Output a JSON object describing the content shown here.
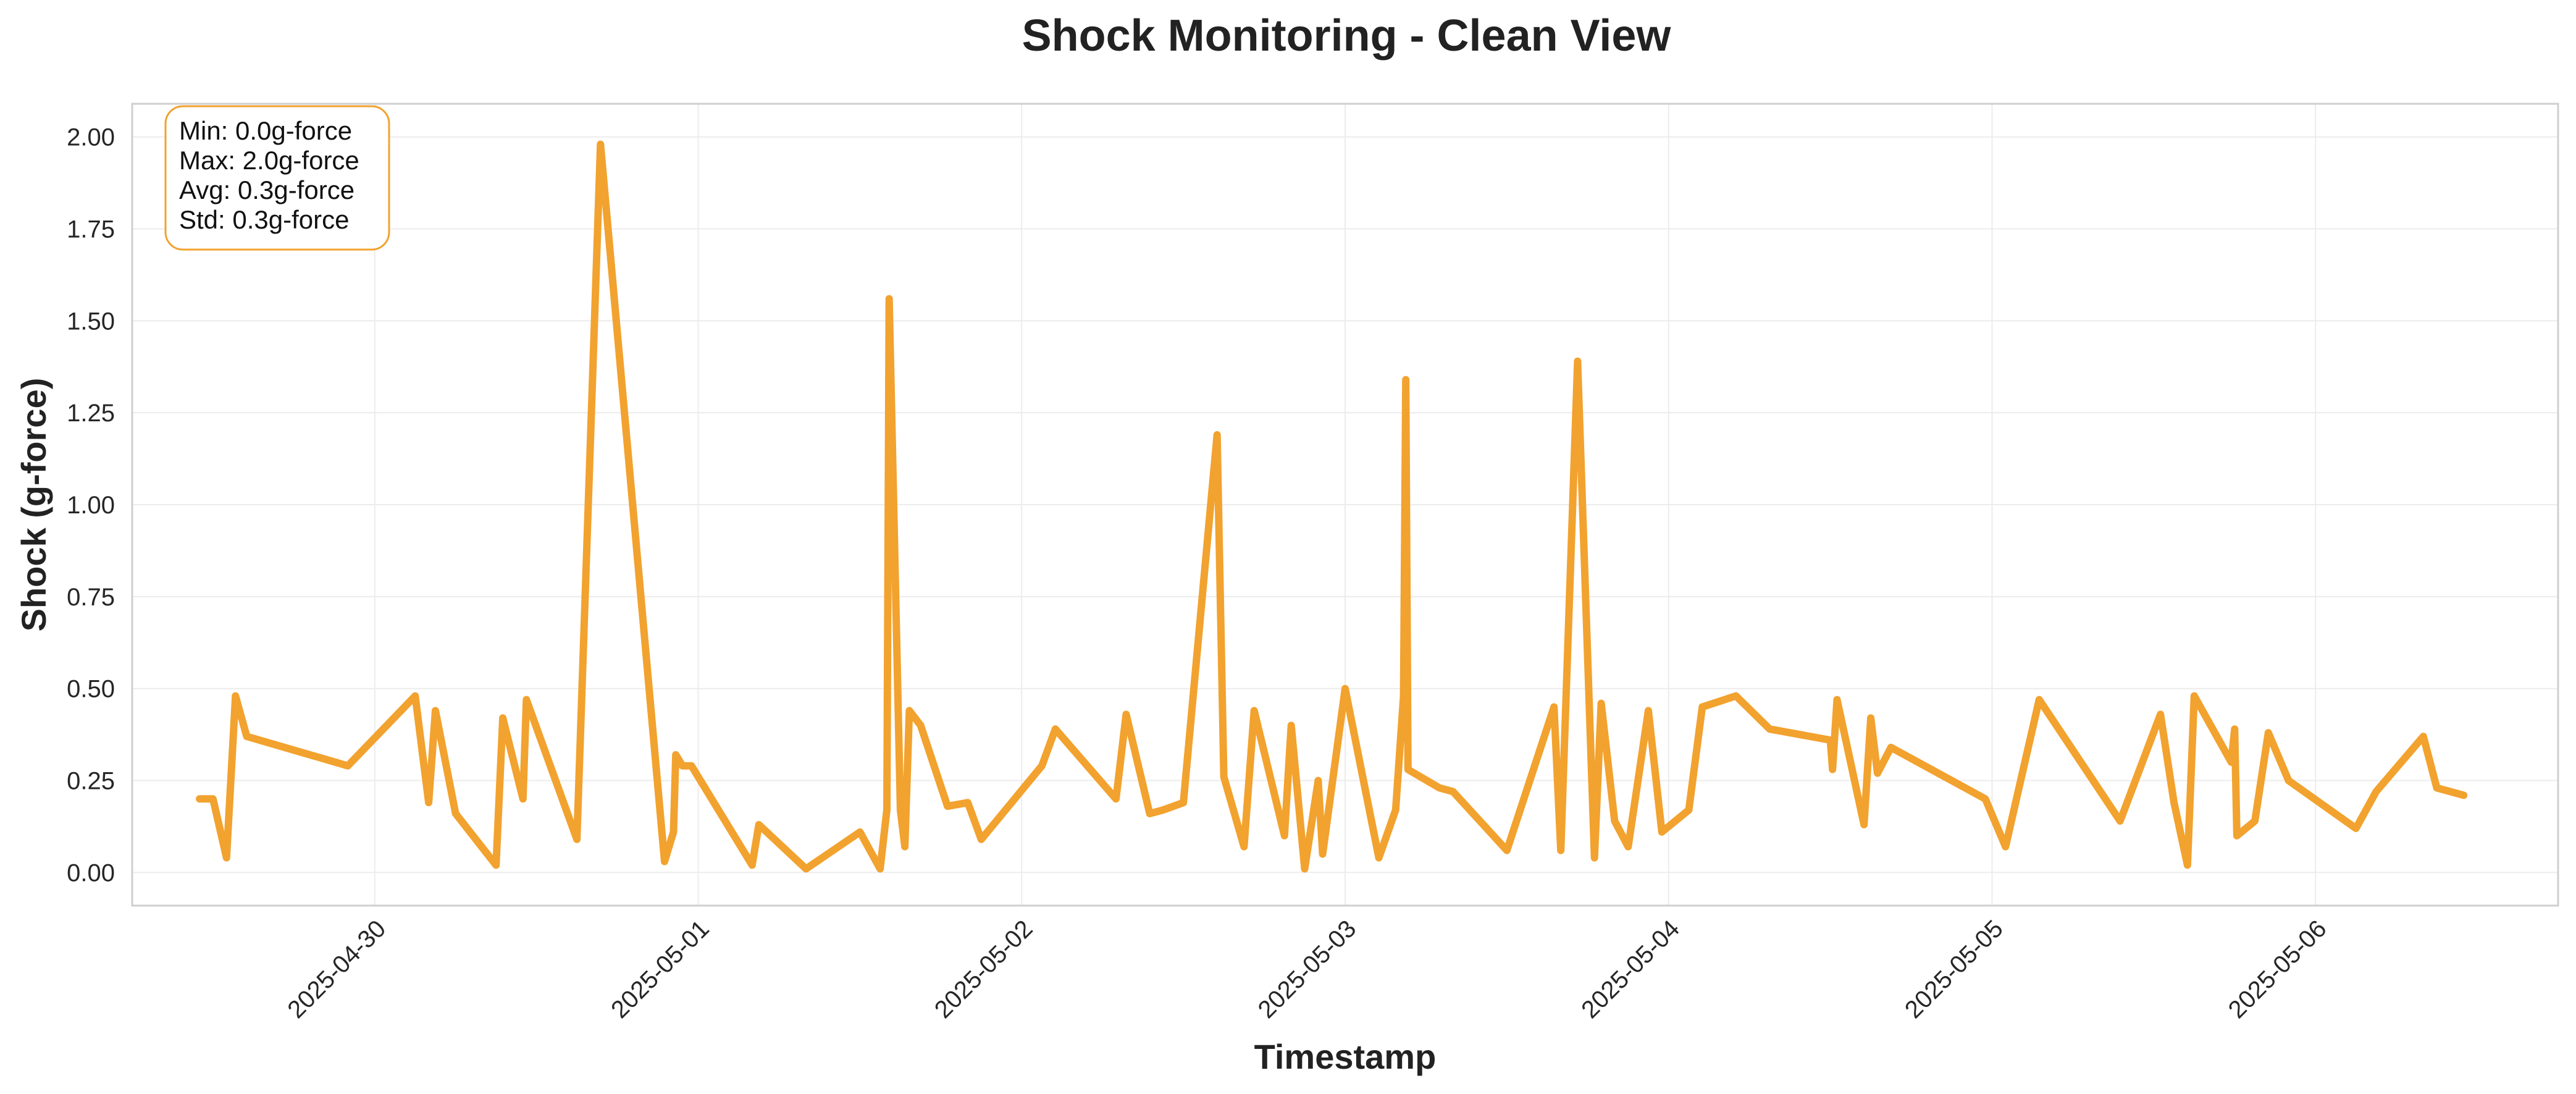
{
  "chart_data": {
    "type": "line",
    "title": "Shock Monitoring - Clean View",
    "xlabel": "Timestamp",
    "ylabel": "Shock (g-force)",
    "x_axis_type": "datetime",
    "xlim": [
      "2025-04-29T06:00",
      "2025-05-06T18:00"
    ],
    "ylim": [
      -0.09,
      2.09
    ],
    "grid": true,
    "line_color": "#F2A22E",
    "y_ticks": [
      0.0,
      0.25,
      0.5,
      0.75,
      1.0,
      1.25,
      1.5,
      1.75,
      2.0
    ],
    "y_tick_labels": [
      "0.00",
      "0.25",
      "0.50",
      "0.75",
      "1.00",
      "1.25",
      "1.50",
      "1.75",
      "2.00"
    ],
    "x_ticks": [
      "2025-04-30T00:00",
      "2025-05-01T00:00",
      "2025-05-02T00:00",
      "2025-05-03T00:00",
      "2025-05-04T00:00",
      "2025-05-05T00:00",
      "2025-05-06T00:00"
    ],
    "x_tick_labels": [
      "2025-04-30",
      "2025-05-01",
      "2025-05-02",
      "2025-05-03",
      "2025-05-04",
      "2025-05-05",
      "2025-05-06"
    ],
    "stats_box": {
      "lines": [
        "Min: 0.0g-force",
        "Max: 2.0g-force",
        "Avg: 0.3g-force",
        "Std: 0.3g-force"
      ],
      "position": "top-left",
      "border_color": "#F2A22E"
    },
    "series": [
      {
        "points": [
          [
            "2025-04-29T11:00",
            0.2
          ],
          [
            "2025-04-29T12:00",
            0.2
          ],
          [
            "2025-04-29T13:00",
            0.04
          ],
          [
            "2025-04-29T13:40",
            0.48
          ],
          [
            "2025-04-29T14:30",
            0.37
          ],
          [
            "2025-04-29T22:00",
            0.29
          ],
          [
            "2025-04-30T03:00",
            0.48
          ],
          [
            "2025-04-30T04:00",
            0.19
          ],
          [
            "2025-04-30T04:30",
            0.44
          ],
          [
            "2025-04-30T06:00",
            0.16
          ],
          [
            "2025-04-30T09:00",
            0.02
          ],
          [
            "2025-04-30T09:30",
            0.42
          ],
          [
            "2025-04-30T11:00",
            0.2
          ],
          [
            "2025-04-30T11:15",
            0.47
          ],
          [
            "2025-04-30T15:00",
            0.09
          ],
          [
            "2025-04-30T16:45",
            1.98
          ],
          [
            "2025-04-30T21:30",
            0.03
          ],
          [
            "2025-04-30T22:10",
            0.11
          ],
          [
            "2025-04-30T22:20",
            0.32
          ],
          [
            "2025-04-30T22:50",
            0.29
          ],
          [
            "2025-04-30T23:30",
            0.29
          ],
          [
            "2025-05-01T04:00",
            0.02
          ],
          [
            "2025-05-01T04:30",
            0.13
          ],
          [
            "2025-05-01T08:00",
            0.01
          ],
          [
            "2025-05-01T12:00",
            0.11
          ],
          [
            "2025-05-01T13:30",
            0.01
          ],
          [
            "2025-05-01T14:00",
            0.17
          ],
          [
            "2025-05-01T14:10",
            1.56
          ],
          [
            "2025-05-01T15:00",
            0.17
          ],
          [
            "2025-05-01T15:20",
            0.07
          ],
          [
            "2025-05-01T15:40",
            0.44
          ],
          [
            "2025-05-01T16:30",
            0.4
          ],
          [
            "2025-05-01T18:30",
            0.18
          ],
          [
            "2025-05-01T20:00",
            0.19
          ],
          [
            "2025-05-01T21:00",
            0.09
          ],
          [
            "2025-05-02T01:30",
            0.29
          ],
          [
            "2025-05-02T02:30",
            0.39
          ],
          [
            "2025-05-02T07:00",
            0.2
          ],
          [
            "2025-05-02T07:45",
            0.43
          ],
          [
            "2025-05-02T09:30",
            0.16
          ],
          [
            "2025-05-02T10:30",
            0.17
          ],
          [
            "2025-05-02T12:00",
            0.19
          ],
          [
            "2025-05-02T14:30",
            1.19
          ],
          [
            "2025-05-02T15:00",
            0.26
          ],
          [
            "2025-05-02T16:30",
            0.07
          ],
          [
            "2025-05-02T17:15",
            0.44
          ],
          [
            "2025-05-02T19:30",
            0.1
          ],
          [
            "2025-05-02T20:00",
            0.4
          ],
          [
            "2025-05-02T21:00",
            0.01
          ],
          [
            "2025-05-02T22:00",
            0.25
          ],
          [
            "2025-05-02T22:20",
            0.05
          ],
          [
            "2025-05-03T00:00",
            0.5
          ],
          [
            "2025-05-03T02:30",
            0.04
          ],
          [
            "2025-05-03T03:45",
            0.17
          ],
          [
            "2025-05-03T04:20",
            0.48
          ],
          [
            "2025-05-03T04:30",
            1.34
          ],
          [
            "2025-05-03T04:40",
            0.28
          ],
          [
            "2025-05-03T07:00",
            0.23
          ],
          [
            "2025-05-03T08:00",
            0.22
          ],
          [
            "2025-05-03T12:00",
            0.06
          ],
          [
            "2025-05-03T15:30",
            0.45
          ],
          [
            "2025-05-03T16:00",
            0.06
          ],
          [
            "2025-05-03T17:15",
            1.39
          ],
          [
            "2025-05-03T18:30",
            0.04
          ],
          [
            "2025-05-03T19:00",
            0.46
          ],
          [
            "2025-05-03T20:00",
            0.14
          ],
          [
            "2025-05-03T21:00",
            0.07
          ],
          [
            "2025-05-03T22:30",
            0.44
          ],
          [
            "2025-05-03T23:30",
            0.11
          ],
          [
            "2025-05-04T01:30",
            0.17
          ],
          [
            "2025-05-04T02:30",
            0.45
          ],
          [
            "2025-05-04T05:00",
            0.48
          ],
          [
            "2025-05-04T07:30",
            0.39
          ],
          [
            "2025-05-04T12:00",
            0.36
          ],
          [
            "2025-05-04T12:10",
            0.28
          ],
          [
            "2025-05-04T12:30",
            0.47
          ],
          [
            "2025-05-04T14:30",
            0.13
          ],
          [
            "2025-05-04T15:00",
            0.42
          ],
          [
            "2025-05-04T15:30",
            0.27
          ],
          [
            "2025-05-04T16:30",
            0.34
          ],
          [
            "2025-05-04T19:30",
            0.28
          ],
          [
            "2025-05-04T23:30",
            0.2
          ],
          [
            "2025-05-05T01:00",
            0.07
          ],
          [
            "2025-05-05T03:30",
            0.47
          ],
          [
            "2025-05-05T09:30",
            0.14
          ],
          [
            "2025-05-05T12:30",
            0.43
          ],
          [
            "2025-05-05T13:30",
            0.19
          ],
          [
            "2025-05-05T14:30",
            0.02
          ],
          [
            "2025-05-05T15:00",
            0.48
          ],
          [
            "2025-05-05T17:45",
            0.3
          ],
          [
            "2025-05-05T18:00",
            0.39
          ],
          [
            "2025-05-05T18:10",
            0.1
          ],
          [
            "2025-05-05T19:30",
            0.14
          ],
          [
            "2025-05-05T20:30",
            0.38
          ],
          [
            "2025-05-05T22:00",
            0.25
          ],
          [
            "2025-05-06T03:00",
            0.12
          ],
          [
            "2025-05-06T04:30",
            0.22
          ],
          [
            "2025-05-06T08:00",
            0.37
          ],
          [
            "2025-05-06T09:00",
            0.23
          ],
          [
            "2025-05-06T11:00",
            0.21
          ]
        ]
      }
    ]
  }
}
